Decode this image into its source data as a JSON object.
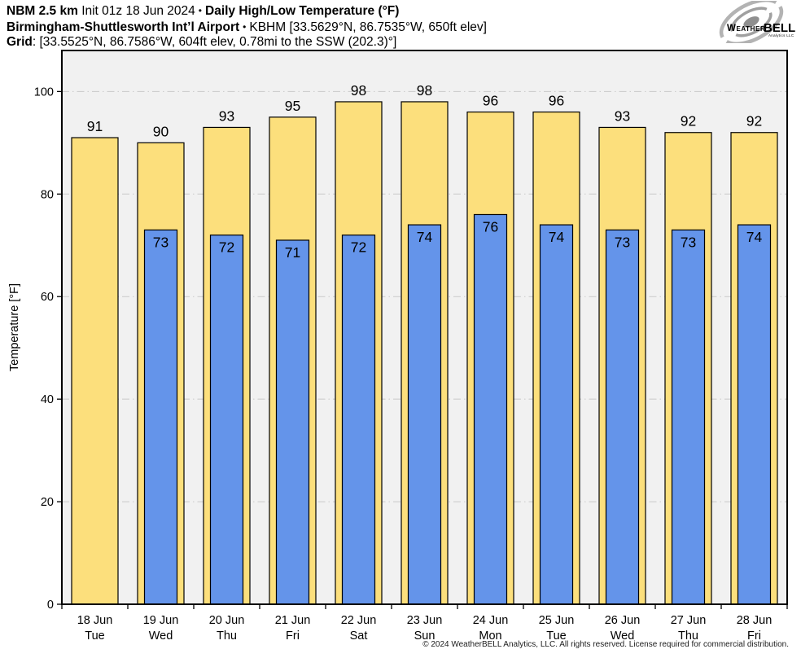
{
  "header": {
    "line1": {
      "model": "NBM 2.5 km",
      "init": "Init 01z 18 Jun 2024",
      "sep": "•",
      "title": "Daily High/Low Temperature (°F)"
    },
    "line2": {
      "station": "Birmingham-Shuttlesworth Int’l Airport",
      "sep": "•",
      "details": "KBHM [33.5629°N, 86.7535°W, 650ft elev]"
    },
    "line3": {
      "label": "Grid",
      "details": ": [33.5525°N, 86.7586°W, 604ft elev, 0.78mi to the SSW (202.3)°]"
    }
  },
  "logo": {
    "name_part1": "Weather",
    "name_part2": "BELL",
    "subtitle": "Analytics LLC"
  },
  "footer": {
    "copyright": "© 2024 WeatherBELL Analytics, LLC. All rights reserved. License required for commercial distribution."
  },
  "chart_data": {
    "type": "bar",
    "title": "Daily High/Low Temperature (°F)",
    "xlabel": "",
    "ylabel": "Temperature [°F]",
    "ylim": [
      0,
      108
    ],
    "yticks": [
      0,
      20,
      40,
      60,
      80,
      100
    ],
    "grid": "horizontal dash-dot gridlines at each y-tick above 0",
    "legend_position": "none",
    "categories": [
      {
        "date": "18 Jun",
        "day": "Tue"
      },
      {
        "date": "19 Jun",
        "day": "Wed"
      },
      {
        "date": "20 Jun",
        "day": "Thu"
      },
      {
        "date": "21 Jun",
        "day": "Fri"
      },
      {
        "date": "22 Jun",
        "day": "Sat"
      },
      {
        "date": "23 Jun",
        "day": "Sun"
      },
      {
        "date": "24 Jun",
        "day": "Mon"
      },
      {
        "date": "25 Jun",
        "day": "Tue"
      },
      {
        "date": "26 Jun",
        "day": "Wed"
      },
      {
        "date": "27 Jun",
        "day": "Thu"
      },
      {
        "date": "28 Jun",
        "day": "Fri"
      }
    ],
    "series": [
      {
        "name": "Daily High",
        "color": "#fcdf7c",
        "values": [
          91,
          90,
          93,
          95,
          98,
          98,
          96,
          96,
          93,
          92,
          92
        ]
      },
      {
        "name": "Daily Low",
        "color": "#6494ea",
        "values": [
          null,
          73,
          72,
          71,
          72,
          74,
          76,
          74,
          73,
          73,
          74
        ]
      }
    ],
    "colors": {
      "plot_background": "#f1f1f1",
      "gridline": "#c9c9c9",
      "bar_edge": "#000000",
      "label_text": "#000000"
    }
  }
}
